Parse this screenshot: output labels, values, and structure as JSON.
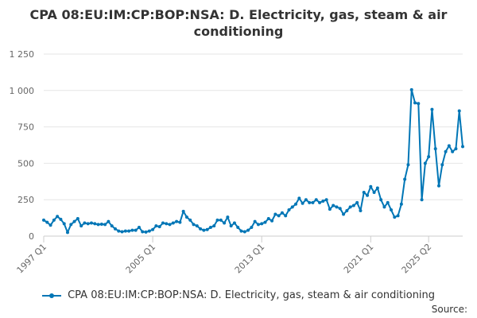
{
  "chart_data": {
    "type": "line",
    "title": "CPA 08:EU:IM:CP:BOP:NSA: D. Electricity, gas, steam & air conditioning",
    "series_name": "CPA 08:EU:IM:CP:BOP:NSA: D. Electricity, gas, steam & air conditioning",
    "color": "#0076b6",
    "ylim": [
      0,
      1250
    ],
    "y_ticks": [
      {
        "value": 0,
        "label": "0"
      },
      {
        "value": 250,
        "label": "250"
      },
      {
        "value": 500,
        "label": "500"
      },
      {
        "value": 750,
        "label": "750"
      },
      {
        "value": 1000,
        "label": "1 000"
      },
      {
        "value": 1250,
        "label": "1 250"
      }
    ],
    "x_ticks": [
      {
        "quarter": "1997 Q1",
        "label": "1997 Q1"
      },
      {
        "quarter": "2005 Q1",
        "label": "2005 Q1"
      },
      {
        "quarter": "2013 Q1",
        "label": "2013 Q1"
      },
      {
        "quarter": "2021 Q1",
        "label": "2021 Q1"
      },
      {
        "quarter": "2025 Q2",
        "label": "2025 Q2"
      }
    ],
    "grid": "horizontal",
    "legend_position": "bottom",
    "start_quarter": "1997 Q1",
    "values": [
      110,
      95,
      75,
      110,
      135,
      115,
      85,
      25,
      80,
      100,
      120,
      70,
      90,
      85,
      90,
      85,
      80,
      82,
      80,
      100,
      70,
      50,
      35,
      30,
      35,
      35,
      40,
      40,
      60,
      30,
      28,
      35,
      45,
      70,
      65,
      90,
      85,
      80,
      90,
      100,
      95,
      170,
      130,
      110,
      80,
      70,
      50,
      40,
      45,
      60,
      70,
      110,
      110,
      90,
      130,
      70,
      90,
      60,
      35,
      30,
      40,
      60,
      100,
      80,
      85,
      95,
      120,
      105,
      150,
      140,
      160,
      140,
      180,
      200,
      220,
      260,
      225,
      250,
      230,
      230,
      250,
      230,
      240,
      250,
      185,
      210,
      200,
      190,
      150,
      175,
      200,
      210,
      230,
      175,
      300,
      280,
      340,
      300,
      330,
      250,
      200,
      230,
      180,
      130,
      140,
      220,
      390,
      490,
      1005,
      915,
      910,
      250,
      500,
      545,
      870,
      600,
      345,
      490,
      580,
      620,
      580,
      600,
      860,
      615
    ]
  },
  "source_label": "Source:"
}
